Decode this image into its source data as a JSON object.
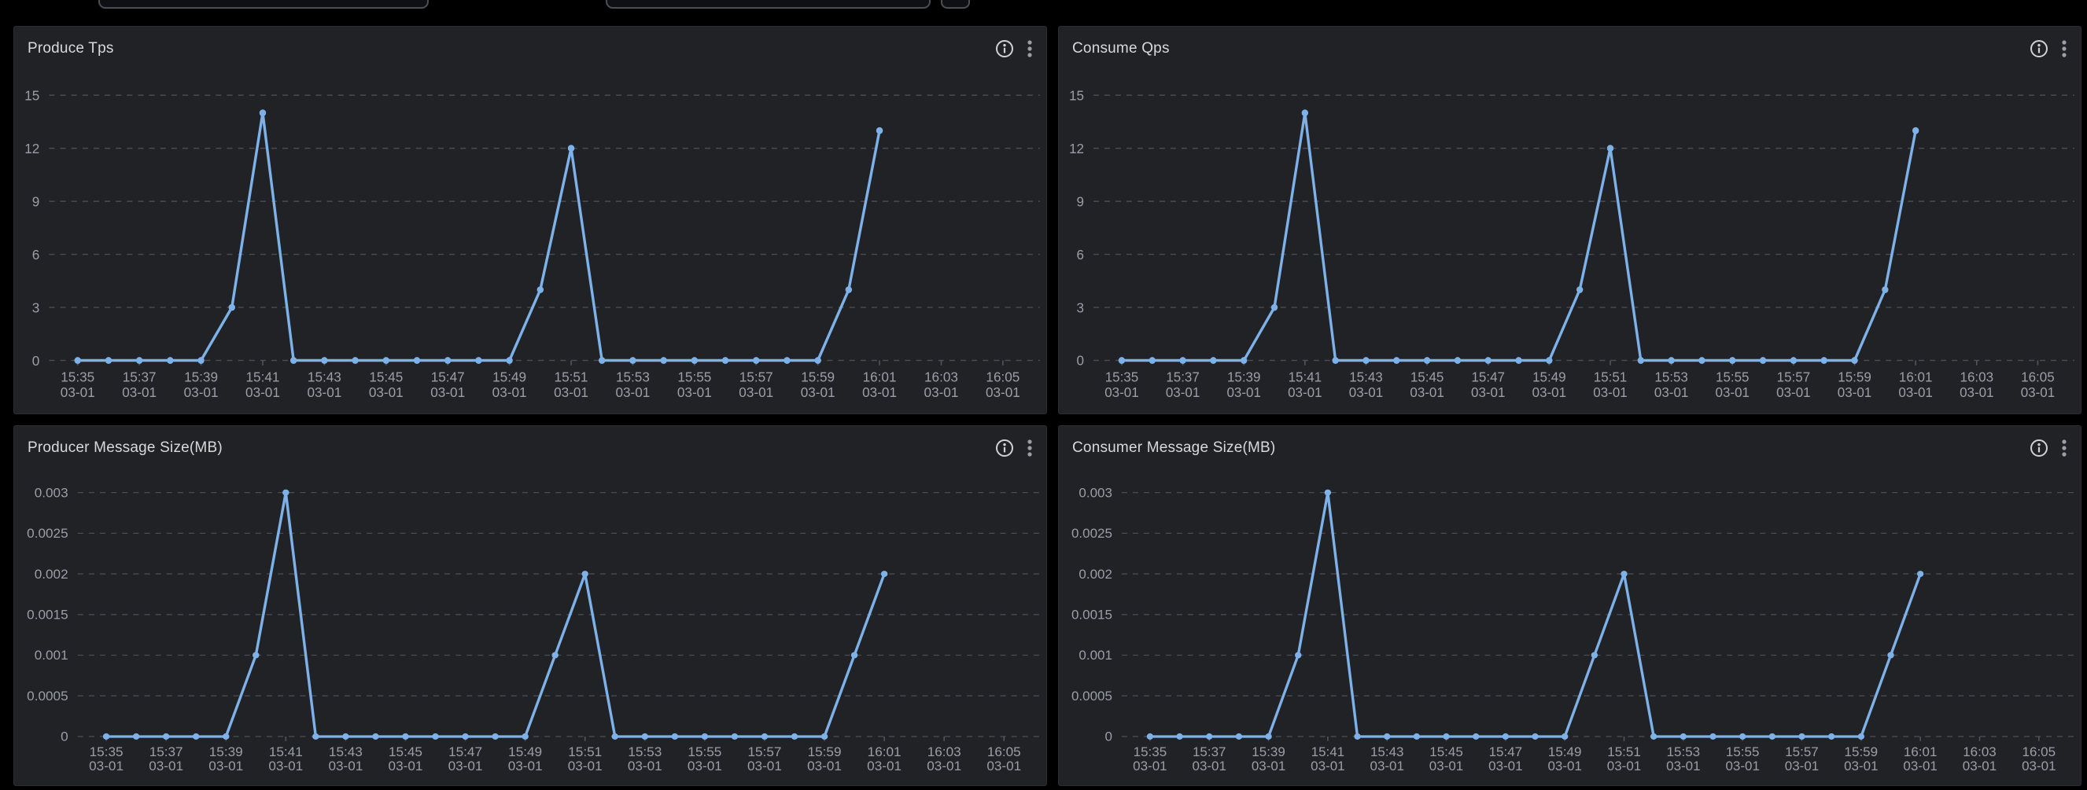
{
  "colors": {
    "page_bg": "#000000",
    "panel_bg": "#212226",
    "panel_border": "#2b2d32",
    "title_text": "#d8d9da",
    "axis_text": "#9a9ea6",
    "gridline": "#4a4c51",
    "tick_mark": "#55585e",
    "line": "#7db1e8",
    "info_icon": "#d0d2d5",
    "kebab_icon": "#9ca0a6"
  },
  "top_bar": {
    "left_input_value": "",
    "right_input_value": ""
  },
  "panel_header_icons": [
    "info-icon",
    "kebab-menu-icon"
  ],
  "chart_data": [
    {
      "panel_title": "Produce Tps",
      "type": "line",
      "title": "Produce Tps",
      "xlabel": "",
      "ylabel": "",
      "x": [
        "15:35",
        "15:36",
        "15:37",
        "15:38",
        "15:39",
        "15:40",
        "15:41",
        "15:42",
        "15:43",
        "15:44",
        "15:45",
        "15:46",
        "15:47",
        "15:48",
        "15:49",
        "15:50",
        "15:51",
        "15:52",
        "15:53",
        "15:54",
        "15:55",
        "15:56",
        "15:57",
        "15:58",
        "15:59",
        "16:00",
        "16:01"
      ],
      "values": [
        0,
        0,
        0,
        0,
        0,
        3,
        14,
        0,
        0,
        0,
        0,
        0,
        0,
        0,
        0,
        4,
        12,
        0,
        0,
        0,
        0,
        0,
        0,
        0,
        0,
        4,
        13
      ],
      "x_ticks": [
        "15:35",
        "15:37",
        "15:39",
        "15:41",
        "15:43",
        "15:45",
        "15:47",
        "15:49",
        "15:51",
        "15:53",
        "15:55",
        "15:57",
        "15:59",
        "16:01",
        "16:03",
        "16:05"
      ],
      "x_tick_sub": "03-01",
      "y_ticks": [
        0,
        3,
        6,
        9,
        12,
        15
      ],
      "y_tick_labels": [
        "0",
        "3",
        "6",
        "9",
        "12",
        "15"
      ],
      "ylim": [
        0,
        15
      ],
      "x_span_minutes": 31.2,
      "grid": "dashed-horizontal",
      "legend": "none"
    },
    {
      "panel_title": "Consume Qps",
      "type": "line",
      "title": "Consume Qps",
      "xlabel": "",
      "ylabel": "",
      "x": [
        "15:35",
        "15:36",
        "15:37",
        "15:38",
        "15:39",
        "15:40",
        "15:41",
        "15:42",
        "15:43",
        "15:44",
        "15:45",
        "15:46",
        "15:47",
        "15:48",
        "15:49",
        "15:50",
        "15:51",
        "15:52",
        "15:53",
        "15:54",
        "15:55",
        "15:56",
        "15:57",
        "15:58",
        "15:59",
        "16:00",
        "16:01"
      ],
      "values": [
        0,
        0,
        0,
        0,
        0,
        3,
        14,
        0,
        0,
        0,
        0,
        0,
        0,
        0,
        0,
        4,
        12,
        0,
        0,
        0,
        0,
        0,
        0,
        0,
        0,
        4,
        13
      ],
      "x_ticks": [
        "15:35",
        "15:37",
        "15:39",
        "15:41",
        "15:43",
        "15:45",
        "15:47",
        "15:49",
        "15:51",
        "15:53",
        "15:55",
        "15:57",
        "15:59",
        "16:01",
        "16:03",
        "16:05"
      ],
      "x_tick_sub": "03-01",
      "y_ticks": [
        0,
        3,
        6,
        9,
        12,
        15
      ],
      "y_tick_labels": [
        "0",
        "3",
        "6",
        "9",
        "12",
        "15"
      ],
      "ylim": [
        0,
        15
      ],
      "x_span_minutes": 31.2,
      "grid": "dashed-horizontal",
      "legend": "none"
    },
    {
      "panel_title": "Producer Message Size(MB)",
      "type": "line",
      "title": "Producer Message Size(MB)",
      "xlabel": "",
      "ylabel": "",
      "x": [
        "15:35",
        "15:36",
        "15:37",
        "15:38",
        "15:39",
        "15:40",
        "15:41",
        "15:42",
        "15:43",
        "15:44",
        "15:45",
        "15:46",
        "15:47",
        "15:48",
        "15:49",
        "15:50",
        "15:51",
        "15:52",
        "15:53",
        "15:54",
        "15:55",
        "15:56",
        "15:57",
        "15:58",
        "15:59",
        "16:00",
        "16:01"
      ],
      "values": [
        0,
        0,
        0,
        0,
        0,
        0.001,
        0.003,
        0,
        0,
        0,
        0,
        0,
        0,
        0,
        0,
        0.001,
        0.002,
        0,
        0,
        0,
        0,
        0,
        0,
        0,
        0,
        0.001,
        0.002
      ],
      "x_ticks": [
        "15:35",
        "15:37",
        "15:39",
        "15:41",
        "15:43",
        "15:45",
        "15:47",
        "15:49",
        "15:51",
        "15:53",
        "15:55",
        "15:57",
        "15:59",
        "16:01",
        "16:03",
        "16:05"
      ],
      "x_tick_sub": "03-01",
      "y_ticks": [
        0,
        0.0005,
        0.001,
        0.0015,
        0.002,
        0.0025,
        0.003
      ],
      "y_tick_labels": [
        "0",
        "0.0005",
        "0.001",
        "0.0015",
        "0.002",
        "0.0025",
        "0.003"
      ],
      "ylim": [
        0,
        0.003
      ],
      "x_span_minutes": 31.2,
      "grid": "dashed-horizontal",
      "legend": "none"
    },
    {
      "panel_title": "Consumer Message Size(MB)",
      "type": "line",
      "title": "Consumer Message Size(MB)",
      "xlabel": "",
      "ylabel": "",
      "x": [
        "15:35",
        "15:36",
        "15:37",
        "15:38",
        "15:39",
        "15:40",
        "15:41",
        "15:42",
        "15:43",
        "15:44",
        "15:45",
        "15:46",
        "15:47",
        "15:48",
        "15:49",
        "15:50",
        "15:51",
        "15:52",
        "15:53",
        "15:54",
        "15:55",
        "15:56",
        "15:57",
        "15:58",
        "15:59",
        "16:00",
        "16:01"
      ],
      "values": [
        0,
        0,
        0,
        0,
        0,
        0.001,
        0.003,
        0,
        0,
        0,
        0,
        0,
        0,
        0,
        0,
        0.001,
        0.002,
        0,
        0,
        0,
        0,
        0,
        0,
        0,
        0,
        0.001,
        0.002
      ],
      "x_ticks": [
        "15:35",
        "15:37",
        "15:39",
        "15:41",
        "15:43",
        "15:45",
        "15:47",
        "15:49",
        "15:51",
        "15:53",
        "15:55",
        "15:57",
        "15:59",
        "16:01",
        "16:03",
        "16:05"
      ],
      "x_tick_sub": "03-01",
      "y_ticks": [
        0,
        0.0005,
        0.001,
        0.0015,
        0.002,
        0.0025,
        0.003
      ],
      "y_tick_labels": [
        "0",
        "0.0005",
        "0.001",
        "0.0015",
        "0.002",
        "0.0025",
        "0.003"
      ],
      "ylim": [
        0,
        0.003
      ],
      "x_span_minutes": 31.2,
      "grid": "dashed-horizontal",
      "legend": "none"
    }
  ]
}
